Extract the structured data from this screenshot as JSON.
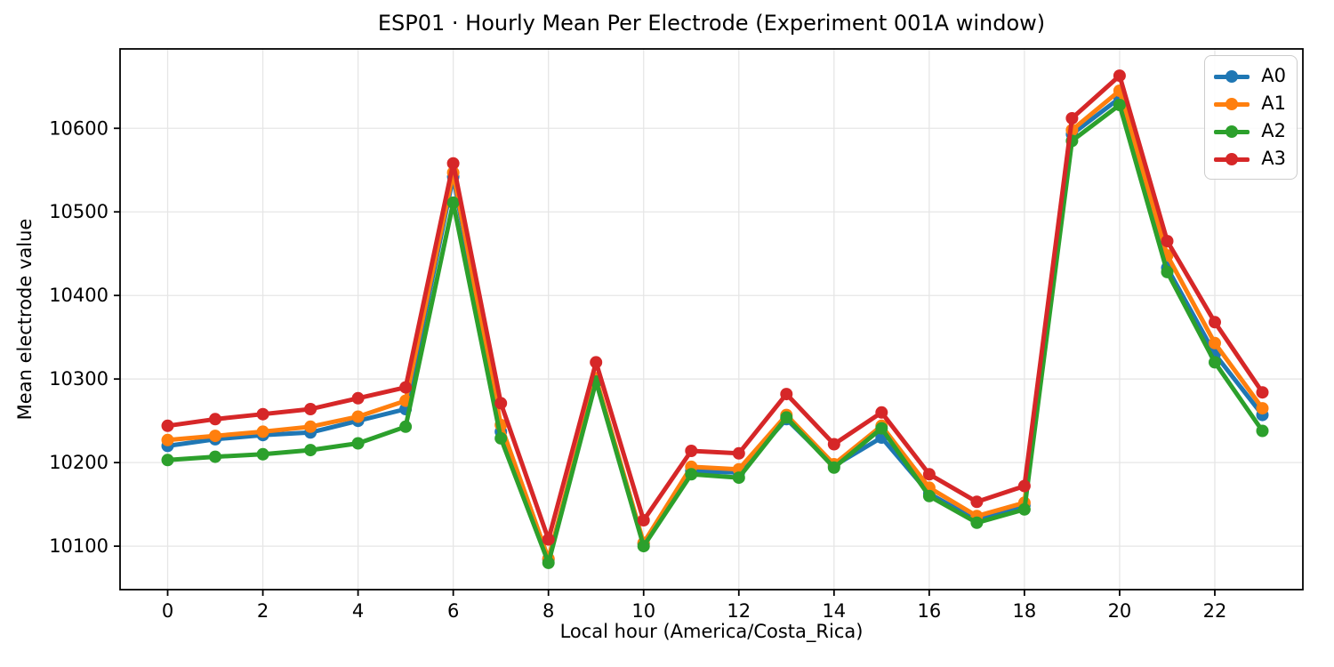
{
  "chart_data": {
    "type": "line",
    "title": "ESP01 · Hourly Mean Per Electrode (Experiment 001A window)",
    "xlabel": "Local hour (America/Costa_Rica)",
    "ylabel": "Mean electrode value",
    "x": [
      0,
      1,
      2,
      3,
      4,
      5,
      6,
      7,
      8,
      9,
      10,
      11,
      12,
      13,
      14,
      15,
      16,
      17,
      18,
      19,
      20,
      21,
      22,
      23
    ],
    "series": [
      {
        "name": "A0",
        "color": "#1f77b4",
        "values": [
          10220,
          10228,
          10233,
          10236,
          10250,
          10264,
          10542,
          10237,
          10084,
          10299,
          10103,
          10190,
          10188,
          10252,
          10196,
          10230,
          10163,
          10131,
          10149,
          10593,
          10636,
          10433,
          10330,
          10257
        ]
      },
      {
        "name": "A1",
        "color": "#ff7f0e",
        "values": [
          10227,
          10232,
          10237,
          10243,
          10255,
          10274,
          10547,
          10245,
          10085,
          10301,
          10104,
          10195,
          10192,
          10257,
          10198,
          10244,
          10170,
          10136,
          10152,
          10598,
          10645,
          10448,
          10343,
          10265
        ]
      },
      {
        "name": "A2",
        "color": "#2ca02c",
        "values": [
          10203,
          10207,
          10210,
          10215,
          10223,
          10243,
          10511,
          10229,
          10080,
          10297,
          10100,
          10186,
          10182,
          10254,
          10194,
          10241,
          10160,
          10128,
          10144,
          10585,
          10628,
          10428,
          10320,
          10238
        ]
      },
      {
        "name": "A3",
        "color": "#d62728",
        "values": [
          10244,
          10252,
          10258,
          10264,
          10277,
          10290,
          10558,
          10271,
          10108,
          10320,
          10131,
          10214,
          10211,
          10282,
          10222,
          10260,
          10186,
          10153,
          10172,
          10612,
          10663,
          10465,
          10368,
          10284
        ]
      }
    ],
    "xlim": [
      -1.0,
      23.85
    ],
    "ylim": [
      10048,
      10695
    ],
    "x_ticks": [
      0,
      2,
      4,
      6,
      8,
      10,
      12,
      14,
      16,
      18,
      20,
      22
    ],
    "y_ticks": [
      10100,
      10200,
      10300,
      10400,
      10500,
      10600
    ],
    "grid": true,
    "legend_position": "upper right",
    "marker": "circle",
    "legend_entries": [
      "A0",
      "A1",
      "A2",
      "A3"
    ]
  }
}
